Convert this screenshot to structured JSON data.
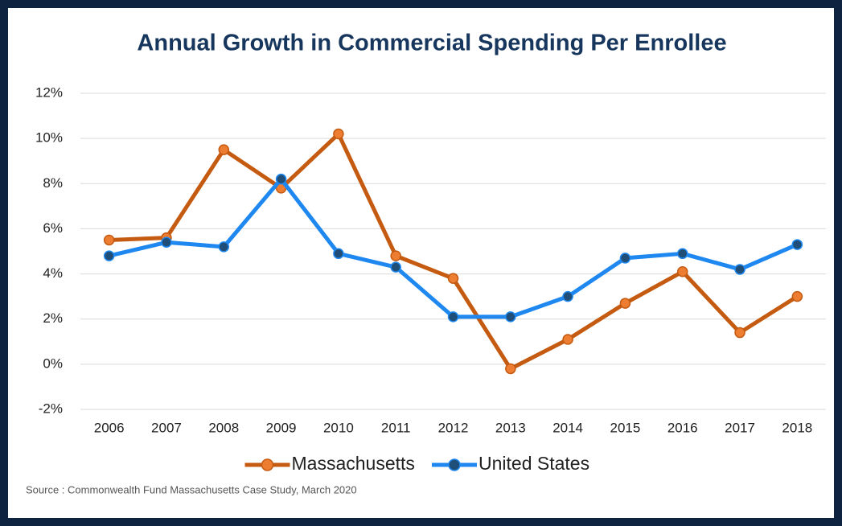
{
  "chart_data": {
    "type": "line",
    "title": "Annual Growth in Commercial Spending Per Enrollee",
    "source": "Source :  Commonwealth Fund Massachusetts Case Study, March 2020",
    "categories": [
      "2006",
      "2007",
      "2008",
      "2009",
      "2010",
      "2011",
      "2012",
      "2013",
      "2014",
      "2015",
      "2016",
      "2017",
      "2018"
    ],
    "series": [
      {
        "name": "Massachusetts",
        "color": "#c55a11",
        "marker_color": "#ed7d31",
        "values": [
          5.5,
          5.6,
          9.5,
          7.8,
          10.2,
          4.8,
          3.8,
          -0.2,
          1.1,
          2.7,
          4.1,
          1.4,
          3.0
        ]
      },
      {
        "name": "United States",
        "color": "#1e88f0",
        "marker_color": "#1f4e79",
        "values": [
          4.8,
          5.4,
          5.2,
          8.2,
          4.9,
          4.3,
          2.1,
          2.1,
          3.0,
          4.7,
          4.9,
          4.2,
          5.3
        ]
      }
    ],
    "ylim": [
      -2,
      12
    ],
    "yticks": [
      {
        "value": -2,
        "label": "-2%"
      },
      {
        "value": 0,
        "label": "0%"
      },
      {
        "value": 2,
        "label": "2%"
      },
      {
        "value": 4,
        "label": "4%"
      },
      {
        "value": 6,
        "label": "6%"
      },
      {
        "value": 8,
        "label": "8%"
      },
      {
        "value": 10,
        "label": "10%"
      },
      {
        "value": 12,
        "label": "12%"
      }
    ],
    "grid": true,
    "legend": "bottom"
  }
}
